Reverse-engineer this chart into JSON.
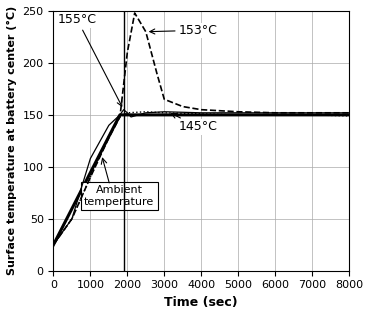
{
  "title": "",
  "xlabel": "Time (sec)",
  "ylabel": "Surface temperature at battery center (°C)",
  "xlim": [
    0,
    8000
  ],
  "ylim": [
    0,
    250
  ],
  "xticks": [
    0,
    1000,
    2000,
    3000,
    4000,
    5000,
    6000,
    7000,
    8000
  ],
  "yticks": [
    0,
    50,
    100,
    150,
    200,
    250
  ],
  "bg_color": "#ffffff",
  "grid_color": "#aaaaaa",
  "ambient": {
    "x": [
      0,
      1800,
      8000
    ],
    "y": [
      25,
      150,
      150
    ]
  },
  "curve_145": {
    "x": [
      0,
      500,
      1000,
      1500,
      1800,
      2000,
      2500,
      3000,
      4000,
      5000,
      6000,
      7000,
      8000
    ],
    "y": [
      25,
      50,
      90,
      130,
      148,
      152,
      153,
      152,
      151,
      150,
      150,
      150,
      149
    ]
  },
  "curve_153": {
    "x": [
      0,
      500,
      1000,
      1500,
      1800,
      2000,
      2200,
      2500,
      2800,
      3000,
      3500,
      4000,
      5000,
      6000,
      7000,
      8000
    ],
    "y": [
      25,
      50,
      90,
      128,
      148,
      210,
      248,
      230,
      190,
      165,
      158,
      155,
      153,
      152,
      152,
      152
    ]
  },
  "curve_155": {
    "x": [
      0,
      500,
      1000,
      1500,
      1800,
      1900,
      2000,
      2100,
      2500,
      3000,
      4000,
      5000,
      6000,
      7000,
      8000
    ],
    "y": [
      25,
      50,
      108,
      140,
      150,
      155,
      152,
      148,
      152,
      153,
      152,
      152,
      152,
      152,
      152
    ]
  },
  "vertical_line_x": 1900,
  "line_color": "#000000",
  "ambient_lw": 2.2,
  "fig_width": 3.7,
  "fig_height": 3.16,
  "dpi": 100
}
